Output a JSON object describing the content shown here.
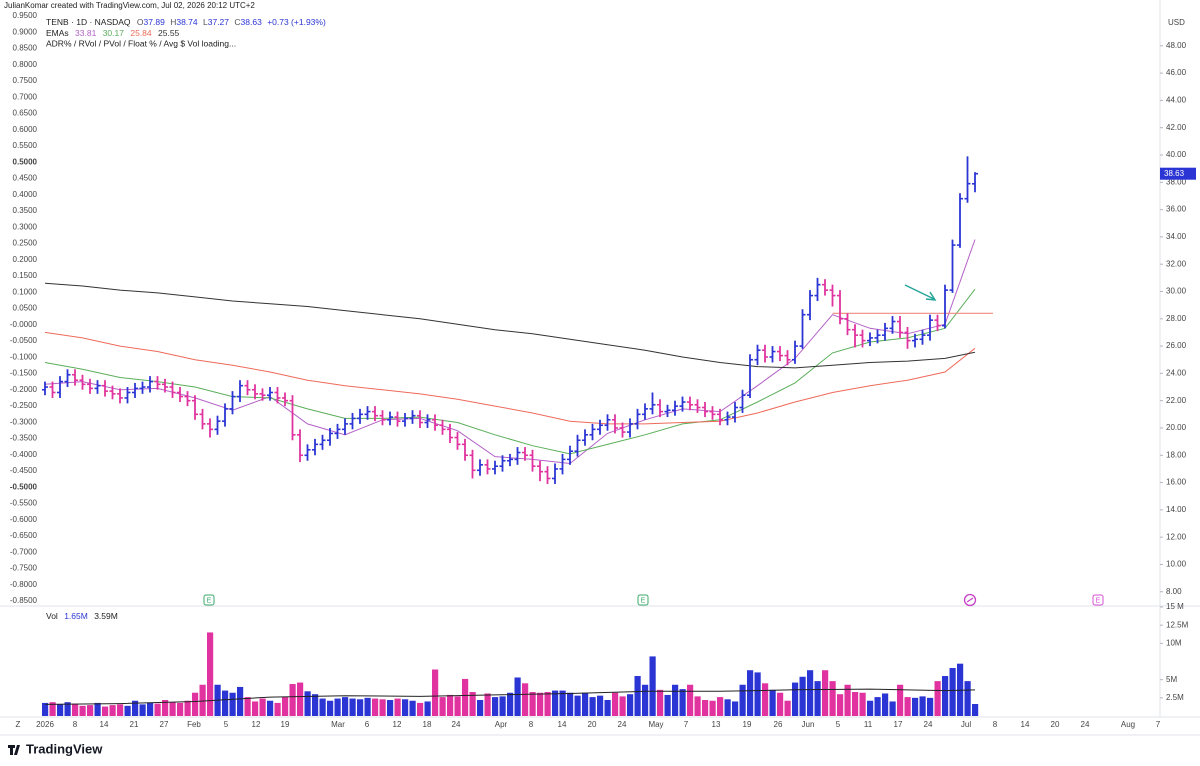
{
  "header": {
    "credit": "JulianKomar created with TradingView.com, Jul 02, 2026 20:12 UTC+2",
    "symbol": "TENB · 1D · NASDAQ",
    "ohlc_keys": [
      "O",
      "H",
      "L",
      "C"
    ],
    "change": "+0.73 (+1.93%)",
    "ema_label": "EMAs",
    "adr_text": "ADR% / RVol / PVol / Float % / Avg $ Vol loading...",
    "vol_label": "Vol",
    "vol_value": "1.65M",
    "vol_avg": "3.59M",
    "currency": "USD",
    "zoom": "Z",
    "logo": "TradingView"
  },
  "chart_data": {
    "type": "ohlc",
    "up_color": "#2b35d4",
    "down_color": "#e0339f",
    "open": [
      22.8,
      23.0,
      22.6,
      23.4,
      23.9,
      23.5,
      23.2,
      22.9,
      23.1,
      22.7,
      22.5,
      22.2,
      22.6,
      22.9,
      23.0,
      23.4,
      23.2,
      23.0,
      22.6,
      22.3,
      22.0,
      21.0,
      20.3,
      19.9,
      20.5,
      21.4,
      22.3,
      23.1,
      22.8,
      22.5,
      22.4,
      22.6,
      22.2,
      22.0,
      19.5,
      18.0,
      18.4,
      18.8,
      19.1,
      19.6,
      19.9,
      20.3,
      20.7,
      21.0,
      21.2,
      20.9,
      20.6,
      20.8,
      20.5,
      20.7,
      20.9,
      20.4,
      20.6,
      20.2,
      19.9,
      19.3,
      18.8,
      18.0,
      16.9,
      17.3,
      17.0,
      17.2,
      17.6,
      17.7,
      18.2,
      18.0,
      17.2,
      16.8,
      16.3,
      17.0,
      17.7,
      18.3,
      19.1,
      19.5,
      19.9,
      20.2,
      20.6,
      20.0,
      19.7,
      20.3,
      21.0,
      21.4,
      21.7,
      21.2,
      21.3,
      21.6,
      21.9,
      21.7,
      21.5,
      21.2,
      21.0,
      20.6,
      20.8,
      21.5,
      22.4,
      25.0,
      25.7,
      25.2,
      25.6,
      25.3,
      25.0,
      26.0,
      28.3,
      29.7,
      30.5,
      30.1,
      29.7,
      28.0,
      27.2,
      26.8,
      26.4,
      26.6,
      26.8,
      27.3,
      27.8,
      27.0,
      26.4,
      26.5,
      26.8,
      27.9,
      27.5,
      30.1,
      33.4,
      36.8,
      37.89
    ],
    "high": [
      23.4,
      23.4,
      23.8,
      24.3,
      24.3,
      23.9,
      23.6,
      23.5,
      23.5,
      23.1,
      22.9,
      23.0,
      23.3,
      23.4,
      23.8,
      23.8,
      23.6,
      23.4,
      23.0,
      22.7,
      22.4,
      21.4,
      20.7,
      20.9,
      21.8,
      22.7,
      23.5,
      23.5,
      23.2,
      22.9,
      23.0,
      23.0,
      22.6,
      22.4,
      19.9,
      18.8,
      19.2,
      19.5,
      20.0,
      20.3,
      20.7,
      21.1,
      21.4,
      21.6,
      21.6,
      21.3,
      21.2,
      21.2,
      21.1,
      21.3,
      21.3,
      21.0,
      21.0,
      20.6,
      20.3,
      19.7,
      19.2,
      18.4,
      17.7,
      17.7,
      17.6,
      18.0,
      18.1,
      18.6,
      18.6,
      18.4,
      17.6,
      17.2,
      17.4,
      18.1,
      18.7,
      19.5,
      19.9,
      20.3,
      20.6,
      21.0,
      21.0,
      20.4,
      20.7,
      21.4,
      21.8,
      22.6,
      22.1,
      21.7,
      22.0,
      22.3,
      22.3,
      22.1,
      21.9,
      21.6,
      21.4,
      21.2,
      21.9,
      22.8,
      25.4,
      26.1,
      26.1,
      26.0,
      26.0,
      25.7,
      26.4,
      28.7,
      30.1,
      31.0,
      30.9,
      30.5,
      30.1,
      28.4,
      27.6,
      27.2,
      27.0,
      27.2,
      27.7,
      28.2,
      28.2,
      27.4,
      26.9,
      27.2,
      28.3,
      28.3,
      30.5,
      33.8,
      37.2,
      39.9,
      38.74
    ],
    "low": [
      22.4,
      22.2,
      22.2,
      23.0,
      23.1,
      22.8,
      22.5,
      22.5,
      22.3,
      22.1,
      21.8,
      21.8,
      22.2,
      22.5,
      22.6,
      22.8,
      22.6,
      22.2,
      21.9,
      21.6,
      20.6,
      19.9,
      19.3,
      19.5,
      20.1,
      21.0,
      21.9,
      22.4,
      22.1,
      22.0,
      22.0,
      21.8,
      21.6,
      19.1,
      17.5,
      17.6,
      18.0,
      18.4,
      18.7,
      19.2,
      19.5,
      19.9,
      20.3,
      20.6,
      20.5,
      20.2,
      20.2,
      20.1,
      20.1,
      20.3,
      20.0,
      20.0,
      19.8,
      19.5,
      18.9,
      18.4,
      17.6,
      16.3,
      16.5,
      16.6,
      16.6,
      16.8,
      17.2,
      17.3,
      17.6,
      16.8,
      16.1,
      15.9,
      15.9,
      16.6,
      17.3,
      17.9,
      18.7,
      19.1,
      19.5,
      19.8,
      19.6,
      19.3,
      19.3,
      19.9,
      20.6,
      21.0,
      20.8,
      20.8,
      20.9,
      21.2,
      21.3,
      21.1,
      20.8,
      20.6,
      20.2,
      20.2,
      20.4,
      21.1,
      22.2,
      24.6,
      24.8,
      24.8,
      24.9,
      24.6,
      24.7,
      25.8,
      27.9,
      29.3,
      29.7,
      28.9,
      27.6,
      26.8,
      25.9,
      25.9,
      26.0,
      26.2,
      26.4,
      26.9,
      26.6,
      25.8,
      25.9,
      26.1,
      26.4,
      27.1,
      27.3,
      29.9,
      33.2,
      36.5,
      37.27
    ],
    "close": [
      23.0,
      22.6,
      23.4,
      23.9,
      23.5,
      23.2,
      22.9,
      23.1,
      22.7,
      22.5,
      22.2,
      22.6,
      22.9,
      23.0,
      23.4,
      23.2,
      23.0,
      22.6,
      22.3,
      22.0,
      21.0,
      20.3,
      19.9,
      20.5,
      21.4,
      22.3,
      23.1,
      22.8,
      22.5,
      22.4,
      22.6,
      22.2,
      22.0,
      19.5,
      18.0,
      18.4,
      18.8,
      19.1,
      19.6,
      19.9,
      20.3,
      20.7,
      21.0,
      21.2,
      20.9,
      20.6,
      20.8,
      20.5,
      20.7,
      20.9,
      20.4,
      20.6,
      20.2,
      19.9,
      19.3,
      18.8,
      18.0,
      16.9,
      17.3,
      17.0,
      17.2,
      17.6,
      17.7,
      18.2,
      18.0,
      17.2,
      16.8,
      16.3,
      17.0,
      17.7,
      18.3,
      19.1,
      19.5,
      19.9,
      20.2,
      20.6,
      20.0,
      19.7,
      20.3,
      21.0,
      21.4,
      21.7,
      21.2,
      21.3,
      21.6,
      21.9,
      21.7,
      21.5,
      21.2,
      21.0,
      20.6,
      20.8,
      21.5,
      22.4,
      25.0,
      25.7,
      25.2,
      25.6,
      25.3,
      25.0,
      26.0,
      28.3,
      29.7,
      30.5,
      30.1,
      29.7,
      28.0,
      27.2,
      26.8,
      26.4,
      26.6,
      26.8,
      27.3,
      27.8,
      27.0,
      26.4,
      26.5,
      26.8,
      27.9,
      27.5,
      30.1,
      33.4,
      36.8,
      37.9,
      38.63
    ],
    "ylim": [
      7.03,
      50.77
    ],
    "yticks": [
      {
        "value": 8,
        "label": "8.00"
      },
      {
        "value": 10,
        "label": "10.00"
      },
      {
        "value": 12,
        "label": "12.00"
      },
      {
        "value": 14,
        "label": "14.00"
      },
      {
        "value": 16,
        "label": "16.00"
      },
      {
        "value": 18,
        "label": "18.00"
      },
      {
        "value": 20,
        "label": "20.00"
      },
      {
        "value": 22,
        "label": "22.00"
      },
      {
        "value": 24,
        "label": "24.00"
      },
      {
        "value": 26,
        "label": "26.00"
      },
      {
        "value": 28,
        "label": "28.00"
      },
      {
        "value": 30,
        "label": "30.00"
      },
      {
        "value": 32,
        "label": "32.00"
      },
      {
        "value": 34,
        "label": "34.00"
      },
      {
        "value": 36,
        "label": "36.00"
      },
      {
        "value": 38,
        "label": "38.00"
      },
      {
        "value": 40,
        "label": "40.00"
      },
      {
        "value": 42,
        "label": "42.00"
      },
      {
        "value": 44,
        "label": "44.00"
      },
      {
        "value": 46,
        "label": "46.00"
      },
      {
        "value": 48,
        "label": "48.00"
      }
    ],
    "left_axis": {
      "ylim": [
        -0.862,
        0.975
      ],
      "yticks": [
        {
          "value": 0.95,
          "label": "0.9500"
        },
        {
          "value": 0.9,
          "label": "0.9000"
        },
        {
          "value": 0.85,
          "label": "0.8500"
        },
        {
          "value": 0.8,
          "label": "0.8000"
        },
        {
          "value": 0.75,
          "label": "0.7500"
        },
        {
          "value": 0.7,
          "label": "0.7000"
        },
        {
          "value": 0.65,
          "label": "0.6500"
        },
        {
          "value": 0.6,
          "label": "0.6000"
        },
        {
          "value": 0.55,
          "label": "0.5500"
        },
        {
          "value": 0.5,
          "label": "0.5000"
        },
        {
          "value": 0.45,
          "label": "0.4500"
        },
        {
          "value": 0.4,
          "label": "0.4000"
        },
        {
          "value": 0.35,
          "label": "0.3500"
        },
        {
          "value": 0.3,
          "label": "0.3000"
        },
        {
          "value": 0.25,
          "label": "0.2500"
        },
        {
          "value": 0.2,
          "label": "0.2000"
        },
        {
          "value": 0.15,
          "label": "0.1500"
        },
        {
          "value": 0.1,
          "label": "0.1000"
        },
        {
          "value": 0.05,
          "label": "0.0500"
        },
        {
          "value": 0,
          "label": "-0.0000"
        },
        {
          "value": -0.05,
          "label": "-0.0500"
        },
        {
          "value": -0.1,
          "label": "-0.1000"
        },
        {
          "value": -0.15,
          "label": "-0.1500"
        },
        {
          "value": -0.2,
          "label": "-0.2000"
        },
        {
          "value": -0.25,
          "label": "-0.2500"
        },
        {
          "value": -0.3,
          "label": "-0.3000"
        },
        {
          "value": -0.35,
          "label": "-0.3500"
        },
        {
          "value": -0.4,
          "label": "-0.4000"
        },
        {
          "value": -0.45,
          "label": "-0.4500"
        },
        {
          "value": -0.5,
          "label": "-0.5000"
        },
        {
          "value": -0.55,
          "label": "-0.5500"
        },
        {
          "value": -0.6,
          "label": "-0.6000"
        },
        {
          "value": -0.65,
          "label": "-0.6500"
        },
        {
          "value": -0.7,
          "label": "-0.7000"
        },
        {
          "value": -0.75,
          "label": "-0.7500"
        },
        {
          "value": -0.8,
          "label": "-0.8000"
        },
        {
          "value": -0.85,
          "label": "-0.8500"
        }
      ]
    },
    "emas": [
      {
        "color": "#b460c8",
        "x": [
          0,
          5,
          10,
          15,
          20,
          25,
          30,
          35,
          40,
          45,
          50,
          55,
          60,
          65,
          70,
          75,
          80,
          85,
          90,
          95,
          100,
          105,
          110,
          115,
          120,
          124
        ],
        "values": [
          23.2,
          23.4,
          22.8,
          22.9,
          22.2,
          21.3,
          22.3,
          20.3,
          19.5,
          20.6,
          20.7,
          19.8,
          17.9,
          17.7,
          17.4,
          19.6,
          20.6,
          21.4,
          21.2,
          23.1,
          25.1,
          28.3,
          27.3,
          26.9,
          27.6,
          33.81
        ]
      },
      {
        "color": "#5aae5a",
        "x": [
          0,
          5,
          10,
          15,
          20,
          25,
          30,
          35,
          40,
          45,
          50,
          55,
          60,
          65,
          70,
          75,
          80,
          85,
          90,
          95,
          100,
          105,
          110,
          115,
          120,
          124
        ],
        "values": [
          24.8,
          24.3,
          23.7,
          23.4,
          23.0,
          22.3,
          22.2,
          21.4,
          20.7,
          20.7,
          20.8,
          20.4,
          19.5,
          18.7,
          18.1,
          18.8,
          19.5,
          20.3,
          20.6,
          21.9,
          23.3,
          25.5,
          26.3,
          26.6,
          27.3,
          30.17
        ]
      },
      {
        "color": "#ee6a5a",
        "x": [
          0,
          5,
          10,
          15,
          20,
          25,
          30,
          35,
          40,
          45,
          50,
          55,
          60,
          65,
          70,
          75,
          80,
          85,
          90,
          95,
          100,
          105,
          110,
          115,
          120,
          124
        ],
        "values": [
          27.0,
          26.6,
          26.0,
          25.6,
          25.0,
          24.6,
          24.1,
          23.5,
          23.1,
          22.8,
          22.5,
          22.1,
          21.6,
          21.1,
          20.5,
          20.3,
          20.3,
          20.4,
          20.5,
          21.1,
          21.9,
          22.6,
          23.1,
          23.5,
          24.1,
          25.84
        ]
      },
      {
        "color": "#333333",
        "x": [
          0,
          5,
          10,
          15,
          20,
          25,
          30,
          35,
          40,
          45,
          50,
          55,
          60,
          65,
          70,
          75,
          80,
          85,
          90,
          95,
          100,
          105,
          110,
          115,
          120,
          124
        ],
        "values": [
          30.6,
          30.4,
          30.1,
          29.9,
          29.6,
          29.3,
          29.1,
          28.9,
          28.6,
          28.3,
          28.0,
          27.6,
          27.2,
          26.9,
          26.5,
          26.1,
          25.7,
          25.2,
          24.8,
          24.5,
          24.4,
          24.6,
          24.8,
          24.9,
          25.1,
          25.55
        ]
      }
    ],
    "level": {
      "value": 28.4,
      "from": 105,
      "color": "#ef8a80"
    },
    "events": [
      {
        "label": "E",
        "color": "#3aa86a"
      },
      {
        "label": "E",
        "color": "#3aa86a"
      },
      {
        "label": "E",
        "color": "#d64fd6"
      }
    ],
    "volume": {
      "values": [
        1800000,
        1900000,
        1600000,
        1900000,
        1700000,
        1400000,
        1500000,
        1800000,
        1300000,
        1500000,
        1600000,
        1400000,
        2100000,
        1600000,
        1800000,
        1700000,
        2200000,
        1900000,
        1800000,
        2100000,
        3200000,
        4300000,
        11500000,
        4300000,
        3500000,
        3200000,
        4000000,
        2600000,
        2000000,
        2400000,
        2100000,
        1800000,
        2600000,
        4400000,
        4600000,
        3400000,
        3000000,
        2400000,
        2100000,
        2400000,
        2600000,
        2400000,
        2300000,
        2500000,
        2400000,
        2300000,
        2200000,
        2400000,
        2300000,
        2100000,
        1800000,
        2000000,
        6400000,
        2600000,
        2900000,
        2700000,
        5100000,
        3300000,
        2200000,
        3100000,
        2600000,
        2700000,
        3200000,
        5300000,
        4500000,
        3300000,
        3200000,
        3300000,
        3500000,
        3500000,
        3200000,
        2800000,
        3200000,
        2600000,
        2800000,
        2200000,
        3200000,
        2700000,
        3000000,
        5500000,
        4300000,
        8200000,
        3600000,
        2900000,
        4300000,
        3700000,
        4300000,
        2700000,
        2200000,
        2100000,
        2600000,
        2300000,
        2000000,
        4300000,
        6300000,
        6000000,
        4500000,
        3600000,
        3200000,
        2100000,
        4600000,
        5400000,
        6300000,
        4800000,
        6300000,
        4800000,
        3000000,
        4300000,
        3300000,
        3200000,
        2100000,
        2600000,
        3100000,
        2000000,
        4300000,
        2600000,
        2500000,
        2700000,
        2500000,
        4800000,
        5500000,
        6600000,
        7200000,
        4800000,
        1650000
      ],
      "ma": {
        "color": "#222222",
        "x": [
          0,
          10,
          20,
          30,
          40,
          50,
          60,
          70,
          80,
          90,
          100,
          110,
          120,
          124
        ],
        "values": [
          1600000,
          1700000,
          2000000,
          2600000,
          2800000,
          2700000,
          2900000,
          3100000,
          3400000,
          3400000,
          3600000,
          3700000,
          3500000,
          3590000
        ]
      },
      "ylim": [
        0,
        15000000
      ],
      "yticks": [
        {
          "value": 2500000,
          "label": "2.5M"
        },
        {
          "value": 5000000,
          "label": "5M"
        },
        {
          "value": 10000000,
          "label": "10M"
        },
        {
          "value": 12500000,
          "label": "12.5M"
        },
        {
          "value": 15000000,
          "label": "15 M"
        }
      ]
    },
    "x_labels": [
      "2026",
      "8",
      "14",
      "21",
      "27",
      "Feb",
      "5",
      "12",
      "19",
      "Mar",
      "6",
      "12",
      "18",
      "24",
      "Apr",
      "8",
      "14",
      "20",
      "24",
      "May",
      "7",
      "13",
      "19",
      "26",
      "Jun",
      "5",
      "11",
      "17",
      "24",
      "Jul",
      "8",
      "14",
      "20",
      "24",
      "Aug",
      "7"
    ]
  }
}
